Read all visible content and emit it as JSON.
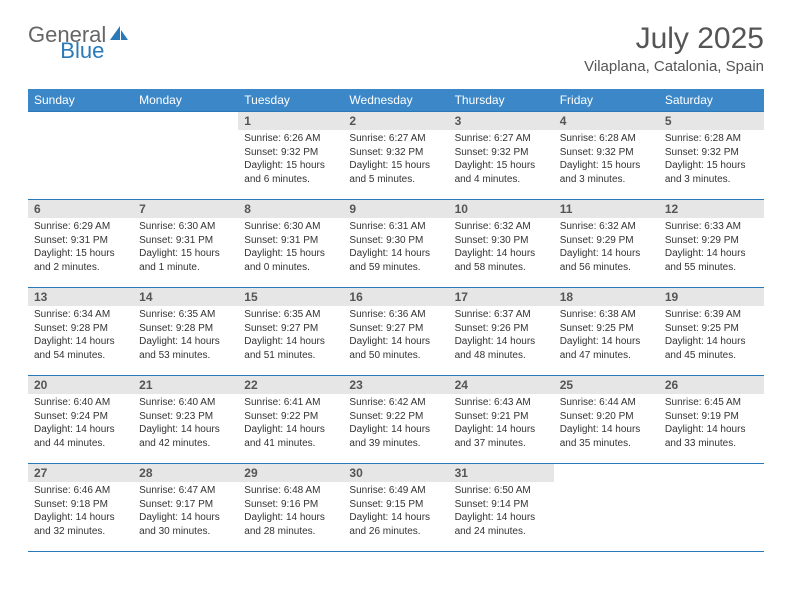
{
  "logo": {
    "text_gray": "General",
    "text_blue": "Blue",
    "icon_color": "#2a7ab9"
  },
  "colors": {
    "header_bg": "#3b87c8",
    "header_text": "#ffffff",
    "daynum_bg": "#e6e6e6",
    "border": "#2a7ab9",
    "body_text": "#333333",
    "title_text": "#555555"
  },
  "title": {
    "month": "July 2025",
    "location": "Vilaplana, Catalonia, Spain"
  },
  "weekdays": [
    "Sunday",
    "Monday",
    "Tuesday",
    "Wednesday",
    "Thursday",
    "Friday",
    "Saturday"
  ],
  "weeks": [
    [
      null,
      null,
      {
        "n": "1",
        "sunrise": "Sunrise: 6:26 AM",
        "sunset": "Sunset: 9:32 PM",
        "daylight": "Daylight: 15 hours and 6 minutes."
      },
      {
        "n": "2",
        "sunrise": "Sunrise: 6:27 AM",
        "sunset": "Sunset: 9:32 PM",
        "daylight": "Daylight: 15 hours and 5 minutes."
      },
      {
        "n": "3",
        "sunrise": "Sunrise: 6:27 AM",
        "sunset": "Sunset: 9:32 PM",
        "daylight": "Daylight: 15 hours and 4 minutes."
      },
      {
        "n": "4",
        "sunrise": "Sunrise: 6:28 AM",
        "sunset": "Sunset: 9:32 PM",
        "daylight": "Daylight: 15 hours and 3 minutes."
      },
      {
        "n": "5",
        "sunrise": "Sunrise: 6:28 AM",
        "sunset": "Sunset: 9:32 PM",
        "daylight": "Daylight: 15 hours and 3 minutes."
      }
    ],
    [
      {
        "n": "6",
        "sunrise": "Sunrise: 6:29 AM",
        "sunset": "Sunset: 9:31 PM",
        "daylight": "Daylight: 15 hours and 2 minutes."
      },
      {
        "n": "7",
        "sunrise": "Sunrise: 6:30 AM",
        "sunset": "Sunset: 9:31 PM",
        "daylight": "Daylight: 15 hours and 1 minute."
      },
      {
        "n": "8",
        "sunrise": "Sunrise: 6:30 AM",
        "sunset": "Sunset: 9:31 PM",
        "daylight": "Daylight: 15 hours and 0 minutes."
      },
      {
        "n": "9",
        "sunrise": "Sunrise: 6:31 AM",
        "sunset": "Sunset: 9:30 PM",
        "daylight": "Daylight: 14 hours and 59 minutes."
      },
      {
        "n": "10",
        "sunrise": "Sunrise: 6:32 AM",
        "sunset": "Sunset: 9:30 PM",
        "daylight": "Daylight: 14 hours and 58 minutes."
      },
      {
        "n": "11",
        "sunrise": "Sunrise: 6:32 AM",
        "sunset": "Sunset: 9:29 PM",
        "daylight": "Daylight: 14 hours and 56 minutes."
      },
      {
        "n": "12",
        "sunrise": "Sunrise: 6:33 AM",
        "sunset": "Sunset: 9:29 PM",
        "daylight": "Daylight: 14 hours and 55 minutes."
      }
    ],
    [
      {
        "n": "13",
        "sunrise": "Sunrise: 6:34 AM",
        "sunset": "Sunset: 9:28 PM",
        "daylight": "Daylight: 14 hours and 54 minutes."
      },
      {
        "n": "14",
        "sunrise": "Sunrise: 6:35 AM",
        "sunset": "Sunset: 9:28 PM",
        "daylight": "Daylight: 14 hours and 53 minutes."
      },
      {
        "n": "15",
        "sunrise": "Sunrise: 6:35 AM",
        "sunset": "Sunset: 9:27 PM",
        "daylight": "Daylight: 14 hours and 51 minutes."
      },
      {
        "n": "16",
        "sunrise": "Sunrise: 6:36 AM",
        "sunset": "Sunset: 9:27 PM",
        "daylight": "Daylight: 14 hours and 50 minutes."
      },
      {
        "n": "17",
        "sunrise": "Sunrise: 6:37 AM",
        "sunset": "Sunset: 9:26 PM",
        "daylight": "Daylight: 14 hours and 48 minutes."
      },
      {
        "n": "18",
        "sunrise": "Sunrise: 6:38 AM",
        "sunset": "Sunset: 9:25 PM",
        "daylight": "Daylight: 14 hours and 47 minutes."
      },
      {
        "n": "19",
        "sunrise": "Sunrise: 6:39 AM",
        "sunset": "Sunset: 9:25 PM",
        "daylight": "Daylight: 14 hours and 45 minutes."
      }
    ],
    [
      {
        "n": "20",
        "sunrise": "Sunrise: 6:40 AM",
        "sunset": "Sunset: 9:24 PM",
        "daylight": "Daylight: 14 hours and 44 minutes."
      },
      {
        "n": "21",
        "sunrise": "Sunrise: 6:40 AM",
        "sunset": "Sunset: 9:23 PM",
        "daylight": "Daylight: 14 hours and 42 minutes."
      },
      {
        "n": "22",
        "sunrise": "Sunrise: 6:41 AM",
        "sunset": "Sunset: 9:22 PM",
        "daylight": "Daylight: 14 hours and 41 minutes."
      },
      {
        "n": "23",
        "sunrise": "Sunrise: 6:42 AM",
        "sunset": "Sunset: 9:22 PM",
        "daylight": "Daylight: 14 hours and 39 minutes."
      },
      {
        "n": "24",
        "sunrise": "Sunrise: 6:43 AM",
        "sunset": "Sunset: 9:21 PM",
        "daylight": "Daylight: 14 hours and 37 minutes."
      },
      {
        "n": "25",
        "sunrise": "Sunrise: 6:44 AM",
        "sunset": "Sunset: 9:20 PM",
        "daylight": "Daylight: 14 hours and 35 minutes."
      },
      {
        "n": "26",
        "sunrise": "Sunrise: 6:45 AM",
        "sunset": "Sunset: 9:19 PM",
        "daylight": "Daylight: 14 hours and 33 minutes."
      }
    ],
    [
      {
        "n": "27",
        "sunrise": "Sunrise: 6:46 AM",
        "sunset": "Sunset: 9:18 PM",
        "daylight": "Daylight: 14 hours and 32 minutes."
      },
      {
        "n": "28",
        "sunrise": "Sunrise: 6:47 AM",
        "sunset": "Sunset: 9:17 PM",
        "daylight": "Daylight: 14 hours and 30 minutes."
      },
      {
        "n": "29",
        "sunrise": "Sunrise: 6:48 AM",
        "sunset": "Sunset: 9:16 PM",
        "daylight": "Daylight: 14 hours and 28 minutes."
      },
      {
        "n": "30",
        "sunrise": "Sunrise: 6:49 AM",
        "sunset": "Sunset: 9:15 PM",
        "daylight": "Daylight: 14 hours and 26 minutes."
      },
      {
        "n": "31",
        "sunrise": "Sunrise: 6:50 AM",
        "sunset": "Sunset: 9:14 PM",
        "daylight": "Daylight: 14 hours and 24 minutes."
      },
      null,
      null
    ]
  ]
}
